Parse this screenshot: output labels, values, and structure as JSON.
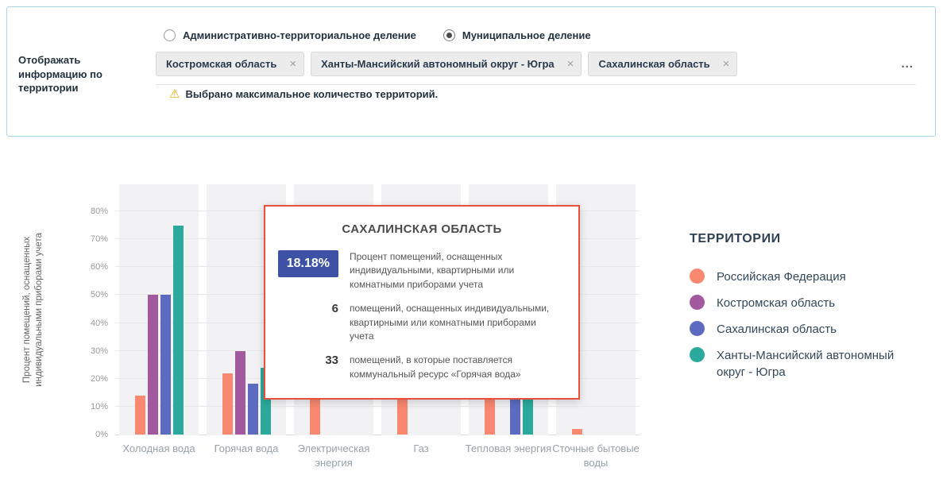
{
  "panel": {
    "territory_label": "Отображать информацию по территории",
    "radio_options": [
      {
        "label": "Административно-территориальное деление",
        "selected": false
      },
      {
        "label": "Муниципальное деление",
        "selected": true
      }
    ],
    "tags": [
      "Костромская область",
      "Ханты-Мансийский автономный округ - Югра",
      "Сахалинская область"
    ],
    "warning": "Выбрано максимальное количество территорий.",
    "warning_icon": "⚠",
    "more_icon": "•••"
  },
  "chart_data": {
    "type": "bar",
    "ylabel": "Процент помещений, оснащенных\nиндивидуальными приборами учета",
    "ylim": [
      0,
      90
    ],
    "yticks": [
      0,
      10,
      20,
      30,
      40,
      50,
      60,
      70,
      80
    ],
    "ytick_labels": [
      "0%",
      "10%",
      "20%",
      "30%",
      "40%",
      "50%",
      "60%",
      "70%",
      "80%"
    ],
    "grid": true,
    "legend_title": "ТЕРРИТОРИИ",
    "legend_position": "right",
    "categories": [
      "Холодная вода",
      "Горячая вода",
      "Электрическая энергия",
      "Газ",
      "Тепловая энергия",
      "Сточные бытовые воды"
    ],
    "series": [
      {
        "name": "Российская Федерация",
        "color": "#f98870",
        "values": [
          14,
          22,
          15,
          13,
          22,
          2
        ]
      },
      {
        "name": "Костромская область",
        "color": "#a3599d",
        "values": [
          50,
          30,
          0,
          0,
          0,
          0
        ]
      },
      {
        "name": "Сахалинская область",
        "color": "#5c6bc0",
        "values": [
          50,
          18.18,
          0,
          0,
          19,
          0
        ]
      },
      {
        "name": "Ханты-Мансийский автономный округ - Югра",
        "color": "#2ba99c",
        "values": [
          75,
          24,
          0,
          0,
          22,
          0
        ]
      }
    ]
  },
  "tooltip": {
    "title": "САХАЛИНСКАЯ ОБЛАСТЬ",
    "rows": [
      {
        "value": "18.18%",
        "badge": true,
        "text": "Процент помещений, оснащенных индивидуальными, квартирными или комнатными приборами учета"
      },
      {
        "value": "6",
        "badge": false,
        "text": "помещений, оснащенных индивидуальными, квартирными или комнатными приборами учета"
      },
      {
        "value": "33",
        "badge": false,
        "text": "помещений, в которые поставляется коммунальный ресурс «Горячая вода»"
      }
    ]
  }
}
